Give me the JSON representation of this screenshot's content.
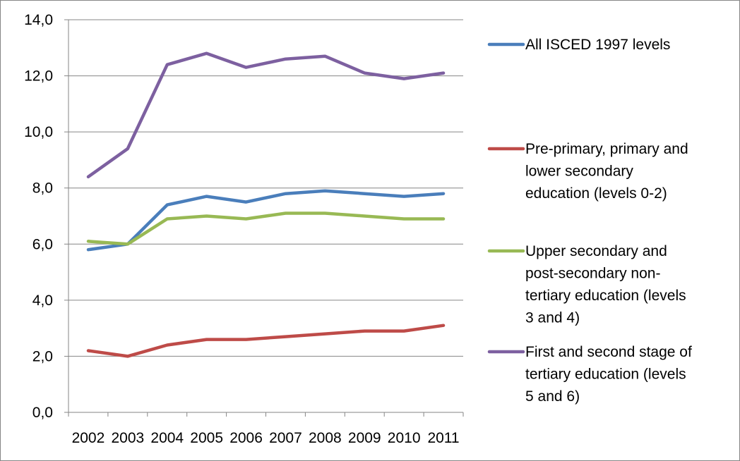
{
  "chart_data": {
    "type": "line",
    "categories": [
      "2002",
      "2003",
      "2004",
      "2005",
      "2006",
      "2007",
      "2008",
      "2009",
      "2010",
      "2011"
    ],
    "ylim": [
      0,
      14
    ],
    "yticks": [
      "0,0",
      "2,0",
      "4,0",
      "6,0",
      "8,0",
      "10,0",
      "12,0",
      "14,0"
    ],
    "grid": "horizontal",
    "legend_position": "right",
    "series": [
      {
        "name": "All ISCED 1997 levels",
        "legend_lines": [
          "All ISCED 1997 levels"
        ],
        "color": "#4A7EBB",
        "values": [
          5.8,
          6.0,
          7.4,
          7.7,
          7.5,
          7.8,
          7.9,
          7.8,
          7.7,
          7.8
        ]
      },
      {
        "name": "Pre-primary, primary and lower secondary education (levels 0-2)",
        "legend_lines": [
          "Pre-primary, primary and",
          "lower secondary",
          "education (levels 0-2)"
        ],
        "color": "#BE4B48",
        "values": [
          2.2,
          2.0,
          2.4,
          2.6,
          2.6,
          2.7,
          2.8,
          2.9,
          2.9,
          3.1
        ]
      },
      {
        "name": "Upper secondary and post-secondary non-tertiary education (levels 3 and 4)",
        "legend_lines": [
          "Upper secondary and",
          "post-secondary non-",
          "tertiary education (levels",
          "3 and 4)"
        ],
        "color": "#98B954",
        "values": [
          6.1,
          6.0,
          6.9,
          7.0,
          6.9,
          7.1,
          7.1,
          7.0,
          6.9,
          6.9
        ]
      },
      {
        "name": "First and second stage of tertiary education (levels 5 and 6)",
        "legend_lines": [
          "First and second stage of",
          "tertiary education (levels",
          "5 and 6)"
        ],
        "color": "#7D60A0",
        "values": [
          8.4,
          9.4,
          12.4,
          12.8,
          12.3,
          12.6,
          12.7,
          12.1,
          11.9,
          12.1
        ]
      }
    ]
  }
}
